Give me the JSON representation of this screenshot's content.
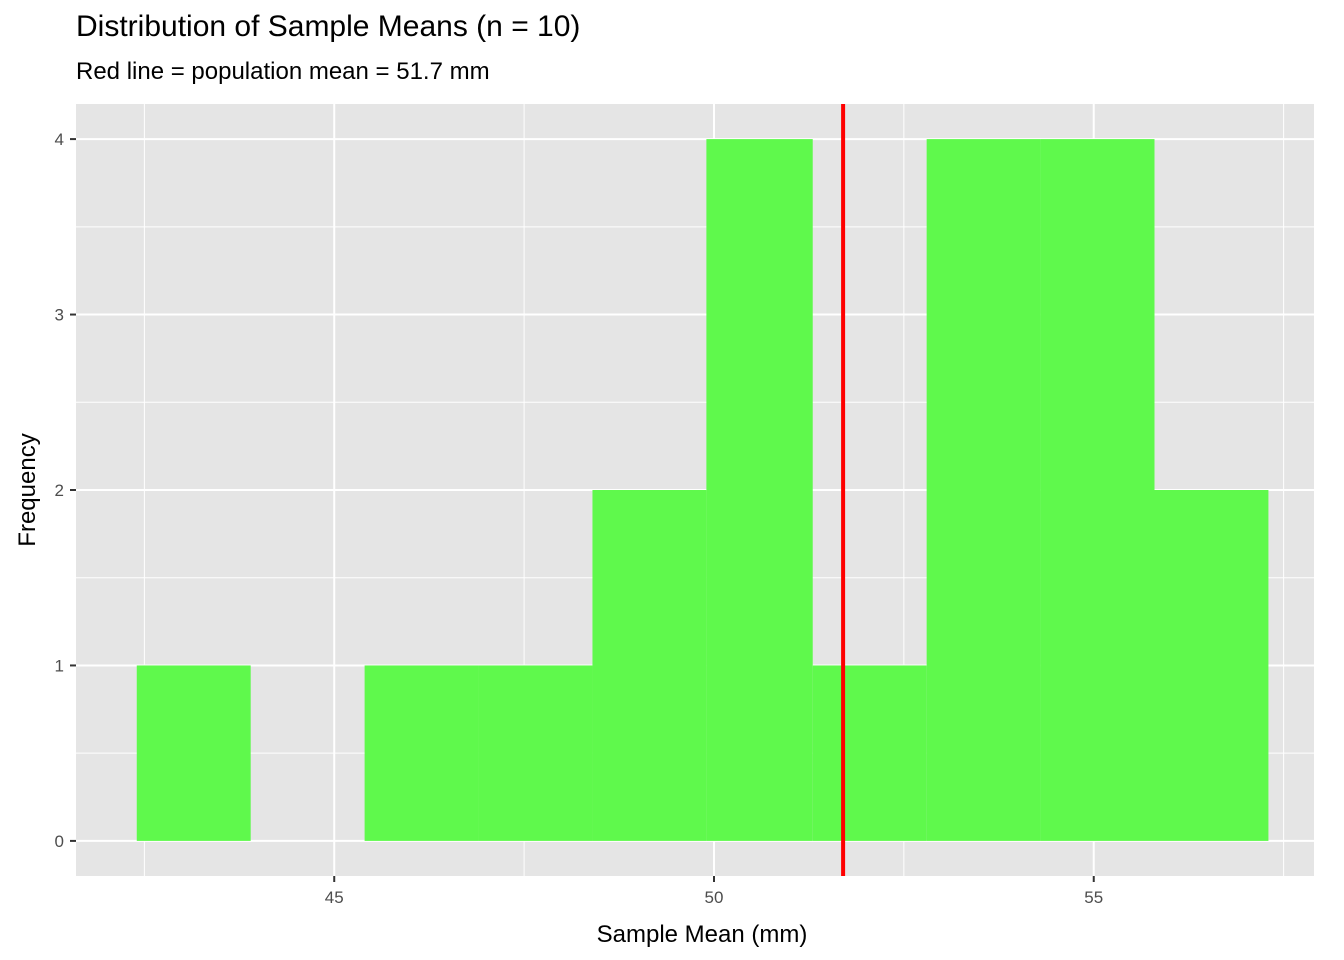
{
  "chart_data": {
    "type": "bar",
    "title": "Distribution of Sample Means (n = 10)",
    "subtitle": "Red line = population mean = 51.7 mm",
    "xlabel": "Sample Mean (mm)",
    "ylabel": "Frequency",
    "bins": [
      {
        "x0": 42.4,
        "x1": 43.9,
        "count": 1
      },
      {
        "x0": 43.9,
        "x1": 45.4,
        "count": 0
      },
      {
        "x0": 45.4,
        "x1": 46.9,
        "count": 1
      },
      {
        "x0": 46.9,
        "x1": 48.4,
        "count": 1
      },
      {
        "x0": 48.4,
        "x1": 49.9,
        "count": 2
      },
      {
        "x0": 49.9,
        "x1": 51.3,
        "count": 4
      },
      {
        "x0": 51.3,
        "x1": 52.8,
        "count": 1
      },
      {
        "x0": 52.8,
        "x1": 54.3,
        "count": 4
      },
      {
        "x0": 54.3,
        "x1": 55.8,
        "count": 4
      },
      {
        "x0": 55.8,
        "x1": 57.3,
        "count": 2
      }
    ],
    "vline": {
      "x": 51.7,
      "color": "#ff0000"
    },
    "xlim": [
      41.6,
      57.9
    ],
    "ylim": [
      -0.2,
      4.2
    ],
    "x_ticks": [
      45,
      50,
      55
    ],
    "y_ticks": [
      0,
      1,
      2,
      3,
      4
    ],
    "grid": true,
    "colors": {
      "bar": "#5ff94c",
      "panel": "#e5e5e5",
      "grid": "#ffffff",
      "vline": "#ff0000"
    }
  }
}
